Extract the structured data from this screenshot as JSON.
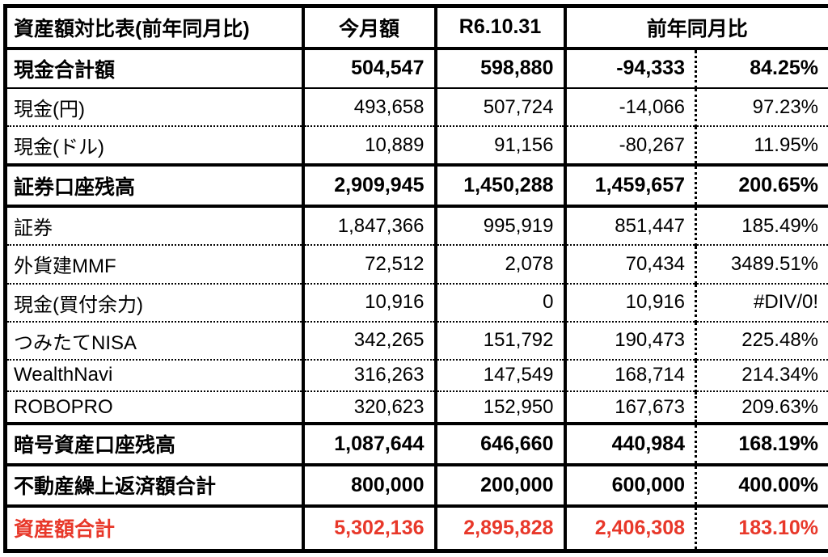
{
  "colors": {
    "background": "#ffffff",
    "text": "#000000",
    "border": "#000000",
    "total_text": "#e8382a"
  },
  "header": {
    "title": "資産額対比表(前年同月比)",
    "col_this_month": "今月額",
    "col_prev_date": "R6.10.31",
    "col_yoy": "前年同月比"
  },
  "chart_data": {
    "type": "table",
    "title": "資産額対比表(前年同月比)",
    "columns": [
      "今月額",
      "R6.10.31",
      "前年同月比"
    ],
    "rows": [
      {
        "label": "現金合計額",
        "this_month": "504,547",
        "prev": "598,880",
        "diff": "-94,333",
        "pct": "84.25%"
      },
      {
        "label": "現金(円)",
        "this_month": "493,658",
        "prev": "507,724",
        "diff": "-14,066",
        "pct": "97.23%"
      },
      {
        "label": "現金(ドル)",
        "this_month": "10,889",
        "prev": "91,156",
        "diff": "-80,267",
        "pct": "11.95%"
      },
      {
        "label": "証券口座残高",
        "this_month": "2,909,945",
        "prev": "1,450,288",
        "diff": "1,459,657",
        "pct": "200.65%"
      },
      {
        "label": "証券",
        "this_month": "1,847,366",
        "prev": "995,919",
        "diff": "851,447",
        "pct": "185.49%"
      },
      {
        "label": "外貨建MMF",
        "this_month": "72,512",
        "prev": "2,078",
        "diff": "70,434",
        "pct": "3489.51%"
      },
      {
        "label": "現金(買付余力)",
        "this_month": "10,916",
        "prev": "0",
        "diff": "10,916",
        "pct": "#DIV/0!"
      },
      {
        "label": "つみたてNISA",
        "this_month": "342,265",
        "prev": "151,792",
        "diff": "190,473",
        "pct": "225.48%"
      },
      {
        "label": "WealthNavi",
        "this_month": "316,263",
        "prev": "147,549",
        "diff": "168,714",
        "pct": "214.34%"
      },
      {
        "label": "ROBOPRO",
        "this_month": "320,623",
        "prev": "152,950",
        "diff": "167,673",
        "pct": "209.63%"
      },
      {
        "label": "暗号資産口座残高",
        "this_month": "1,087,644",
        "prev": "646,660",
        "diff": "440,984",
        "pct": "168.19%"
      },
      {
        "label": "不動産繰上返済額合計",
        "this_month": "800,000",
        "prev": "200,000",
        "diff": "600,000",
        "pct": "400.00%"
      },
      {
        "label": "資産額合計",
        "this_month": "5,302,136",
        "prev": "2,895,828",
        "diff": "2,406,308",
        "pct": "183.10%"
      }
    ]
  }
}
